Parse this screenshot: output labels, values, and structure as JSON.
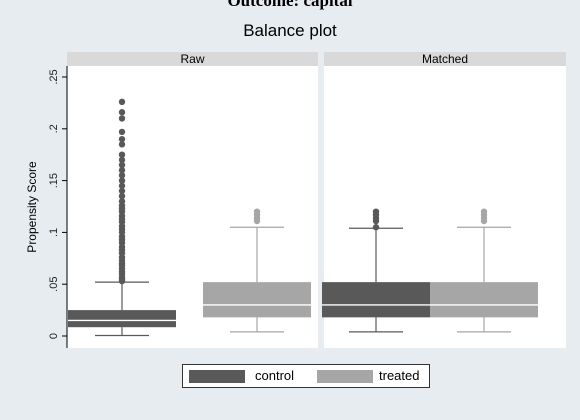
{
  "caption": "Outcome: capital",
  "title": "Balance plot",
  "y_axis_label": "Propensity Score",
  "colors": {
    "control": "#595959",
    "treated": "#a6a6a6",
    "background": "#e6ecf0",
    "panel": "#ffffff",
    "strip": "#d9d9d9"
  },
  "chart_data": {
    "type": "box",
    "title": "Balance plot",
    "ylabel": "Propensity Score",
    "xlabel": "",
    "ylim": [
      0,
      0.25
    ],
    "y_ticks": [
      {
        "value": 0,
        "label": "0"
      },
      {
        "value": 0.05,
        "label": ".05"
      },
      {
        "value": 0.1,
        "label": ".1"
      },
      {
        "value": 0.15,
        "label": ".15"
      },
      {
        "value": 0.2,
        "label": ".2"
      },
      {
        "value": 0.25,
        "label": ".25"
      }
    ],
    "grid": false,
    "legend_position": "bottom",
    "legend": [
      "control",
      "treated"
    ],
    "panels": [
      {
        "name": "Raw",
        "series": [
          {
            "name": "control",
            "whisker_low": 0.0005,
            "q1": 0.0085,
            "median": 0.015,
            "q3": 0.025,
            "whisker_high": 0.052,
            "outliers": [
              0.053,
              0.055,
              0.057,
              0.06,
              0.062,
              0.065,
              0.068,
              0.07,
              0.073,
              0.076,
              0.08,
              0.083,
              0.086,
              0.09,
              0.093,
              0.096,
              0.1,
              0.103,
              0.106,
              0.11,
              0.113,
              0.116,
              0.12,
              0.123,
              0.126,
              0.13,
              0.135,
              0.14,
              0.145,
              0.15,
              0.155,
              0.16,
              0.165,
              0.17,
              0.175,
              0.185,
              0.19,
              0.197,
              0.21,
              0.216,
              0.226
            ]
          },
          {
            "name": "treated",
            "whisker_low": 0.004,
            "q1": 0.018,
            "median": 0.03,
            "q3": 0.052,
            "whisker_high": 0.105,
            "outliers": [
              0.111,
              0.114,
              0.117,
              0.12
            ]
          }
        ]
      },
      {
        "name": "Matched",
        "series": [
          {
            "name": "control",
            "whisker_low": 0.004,
            "q1": 0.018,
            "median": 0.03,
            "q3": 0.052,
            "whisker_high": 0.104,
            "outliers": [
              0.105,
              0.111,
              0.114,
              0.117,
              0.12
            ]
          },
          {
            "name": "treated",
            "whisker_low": 0.004,
            "q1": 0.018,
            "median": 0.03,
            "q3": 0.052,
            "whisker_high": 0.105,
            "outliers": [
              0.111,
              0.114,
              0.117,
              0.12
            ]
          }
        ]
      }
    ]
  }
}
